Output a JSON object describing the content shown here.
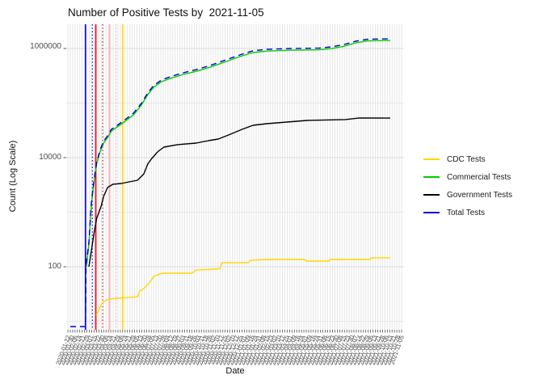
{
  "chart_data": {
    "type": "line",
    "title": "Number of Positive Tests by  2021-11-05",
    "xlabel": "Date",
    "ylabel": "Count (Log Scale)",
    "y_scale": "log10",
    "y_tick_labels": [
      "1000000",
      "10000",
      "100"
    ],
    "y_ticks": [
      1000000,
      10000,
      100
    ],
    "ylim": [
      8,
      2800000
    ],
    "grid": true,
    "legend_position": "right",
    "x_axis": {
      "label": "Date",
      "start_date": "2020-01-22",
      "end_date": "2021-11-05",
      "tick_count": 88,
      "tick_labels_overlapping_illegible": true
    },
    "x_unit": "days_since_2020-01-22",
    "series": [
      {
        "name": "CDC Tests",
        "color": "#FFD700",
        "style": "solid",
        "points": [
          [
            53,
            13
          ],
          [
            58,
            16
          ],
          [
            63,
            20
          ],
          [
            68,
            23
          ],
          [
            76,
            25
          ],
          [
            87,
            26
          ],
          [
            107,
            27
          ],
          [
            137,
            28
          ],
          [
            142,
            36
          ],
          [
            150,
            40
          ],
          [
            158,
            47
          ],
          [
            165,
            56
          ],
          [
            170,
            66
          ],
          [
            183,
            74
          ],
          [
            190,
            76
          ],
          [
            248,
            76
          ],
          [
            257,
            87
          ],
          [
            282,
            89
          ],
          [
            305,
            92
          ],
          [
            310,
            119
          ],
          [
            363,
            119
          ],
          [
            368,
            131
          ],
          [
            401,
            136
          ],
          [
            478,
            136
          ],
          [
            483,
            127
          ],
          [
            528,
            127
          ],
          [
            531,
            136
          ],
          [
            612,
            136
          ],
          [
            615,
            146
          ],
          [
            653,
            146
          ]
        ]
      },
      {
        "name": "Commercial Tests",
        "color": "#00CC00",
        "style": "solid",
        "points": [
          [
            33,
            100
          ],
          [
            38,
            260
          ],
          [
            43,
            1420
          ],
          [
            48,
            3350
          ],
          [
            54,
            7800
          ],
          [
            61,
            13000
          ],
          [
            68,
            18400
          ],
          [
            76,
            23400
          ],
          [
            84,
            30800
          ],
          [
            96,
            36500
          ],
          [
            112,
            46400
          ],
          [
            129,
            60500
          ],
          [
            145,
            91500
          ],
          [
            158,
            142000
          ],
          [
            170,
            194000
          ],
          [
            186,
            246000
          ],
          [
            203,
            281000
          ],
          [
            228,
            330000
          ],
          [
            257,
            382000
          ],
          [
            285,
            453000
          ],
          [
            318,
            578000
          ],
          [
            351,
            735000
          ],
          [
            373,
            844000
          ],
          [
            401,
            898000
          ],
          [
            450,
            930000
          ],
          [
            508,
            946000
          ],
          [
            533,
            996000
          ],
          [
            558,
            1095000
          ],
          [
            582,
            1265000
          ],
          [
            607,
            1376000
          ],
          [
            653,
            1400000
          ]
        ]
      },
      {
        "name": "Government Tests",
        "color": "#000000",
        "style": "solid",
        "points": [
          [
            38,
            100
          ],
          [
            43,
            198
          ],
          [
            48,
            391
          ],
          [
            54,
            774
          ],
          [
            63,
            1290
          ],
          [
            68,
            1940
          ],
          [
            76,
            2830
          ],
          [
            87,
            3250
          ],
          [
            104,
            3360
          ],
          [
            120,
            3590
          ],
          [
            137,
            3850
          ],
          [
            150,
            5040
          ],
          [
            158,
            7620
          ],
          [
            165,
            9330
          ],
          [
            178,
            12700
          ],
          [
            191,
            15600
          ],
          [
            219,
            17300
          ],
          [
            257,
            18500
          ],
          [
            282,
            20500
          ],
          [
            302,
            21900
          ],
          [
            327,
            26900
          ],
          [
            351,
            33100
          ],
          [
            373,
            39200
          ],
          [
            401,
            41900
          ],
          [
            483,
            48100
          ],
          [
            561,
            49900
          ],
          [
            590,
            53400
          ],
          [
            653,
            53000
          ]
        ]
      },
      {
        "name": "Total Tests",
        "color": "#0000CD",
        "style": "dashed",
        "points": [
          [
            0,
            8
          ],
          [
            31,
            8
          ],
          [
            32,
            105
          ],
          [
            38,
            278
          ],
          [
            43,
            1530
          ],
          [
            48,
            3600
          ],
          [
            54,
            8400
          ],
          [
            61,
            14000
          ],
          [
            68,
            19800
          ],
          [
            76,
            25100
          ],
          [
            84,
            33100
          ],
          [
            96,
            39200
          ],
          [
            112,
            49900
          ],
          [
            129,
            65100
          ],
          [
            145,
            98400
          ],
          [
            158,
            153000
          ],
          [
            170,
            209000
          ],
          [
            186,
            264000
          ],
          [
            203,
            302000
          ],
          [
            228,
            355000
          ],
          [
            257,
            411000
          ],
          [
            285,
            487000
          ],
          [
            318,
            621000
          ],
          [
            351,
            790000
          ],
          [
            373,
            908000
          ],
          [
            401,
            966000
          ],
          [
            450,
            1000000
          ],
          [
            508,
            1017000
          ],
          [
            533,
            1071000
          ],
          [
            558,
            1177000
          ],
          [
            582,
            1360000
          ],
          [
            607,
            1480000
          ],
          [
            653,
            1506000
          ]
        ]
      }
    ],
    "vlines": [
      {
        "x_day": 31,
        "color": "#0000FF",
        "style": "solid"
      },
      {
        "x_day": 45,
        "color": "#0000FF",
        "style": "dotted"
      },
      {
        "x_day": 52,
        "color": "#FF0000",
        "style": "solid"
      },
      {
        "x_day": 66,
        "color": "#B22222",
        "style": "dotted"
      },
      {
        "x_day": 80,
        "color": "#FFAEB9",
        "style": "solid"
      },
      {
        "x_day": 94,
        "color": "#FFB6C1",
        "style": "dotted"
      },
      {
        "x_day": 107,
        "color": "#FFD700",
        "style": "solid"
      }
    ]
  },
  "legend": {
    "items": [
      {
        "label": "CDC Tests",
        "color": "#FFD700"
      },
      {
        "label": "Commercial Tests",
        "color": "#00CC00"
      },
      {
        "label": "Government Tests",
        "color": "#000000"
      },
      {
        "label": "Total Tests",
        "color": "#0000CD"
      }
    ]
  }
}
